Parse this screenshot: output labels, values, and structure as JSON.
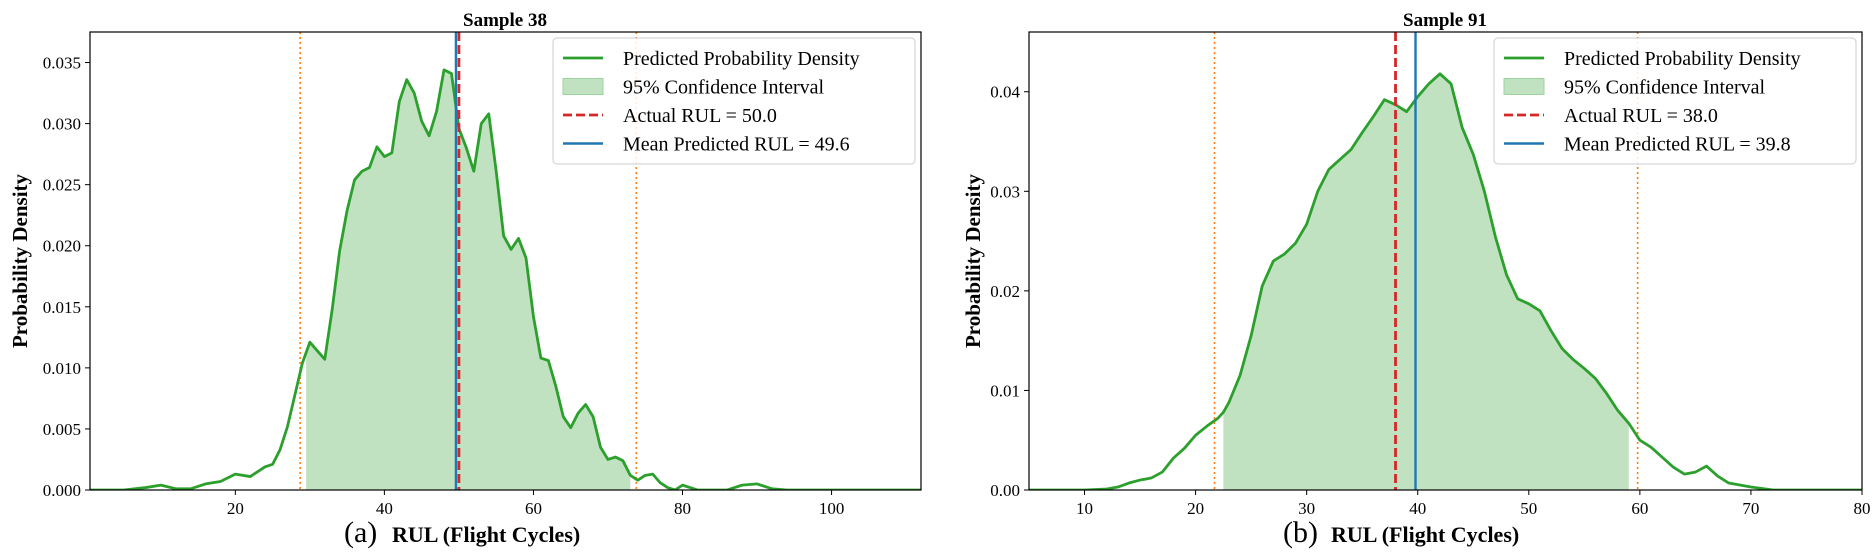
{
  "chart_data": [
    {
      "type": "line",
      "panel_label": "(a)",
      "title": "Sample 38",
      "xlabel": "RUL (Flight Cycles)",
      "ylabel": "Probability Density",
      "xlim": [
        0.5,
        112
      ],
      "ylim": [
        0,
        0.0375
      ],
      "xticks": [
        20,
        40,
        60,
        80,
        100
      ],
      "yticks": [
        0.0,
        0.005,
        0.01,
        0.015,
        0.02,
        0.025,
        0.03,
        0.035
      ],
      "ytick_decimals": 3,
      "ci": [
        29.5,
        73
      ],
      "actual_rul": 50.0,
      "mean_pred_rul": 49.6,
      "legend": [
        "Predicted Probability Density",
        "95% Confidence Interval",
        "Actual RUL = 50.0",
        "Mean Predicted RUL = 49.6"
      ],
      "legend_position": "top-right",
      "x": [
        0.5,
        5,
        8,
        10,
        12,
        14,
        16,
        18,
        20,
        22,
        24,
        25,
        26,
        27,
        28,
        29,
        30,
        31,
        32,
        33,
        34,
        35,
        36,
        37,
        38,
        39,
        40,
        41,
        42,
        43,
        44,
        45,
        46,
        47,
        48,
        49,
        50,
        51,
        52,
        53,
        54,
        55,
        56,
        57,
        58,
        59,
        60,
        61,
        62,
        63,
        64,
        65,
        66,
        67,
        68,
        69,
        70,
        71,
        72,
        73,
        74,
        75,
        76,
        77,
        78,
        79,
        80,
        82,
        84,
        86,
        88,
        90,
        92,
        94,
        96,
        98,
        100,
        102,
        104,
        106,
        112
      ],
      "y": [
        0,
        0,
        0.0002,
        0.0004,
        0.0001,
        0.0001,
        0.0005,
        0.0007,
        0.0013,
        0.0011,
        0.0019,
        0.0021,
        0.0033,
        0.0052,
        0.0078,
        0.0104,
        0.0121,
        0.0114,
        0.0107,
        0.0148,
        0.0196,
        0.0229,
        0.0254,
        0.0261,
        0.0264,
        0.0281,
        0.0273,
        0.0276,
        0.0318,
        0.0336,
        0.0325,
        0.0302,
        0.029,
        0.031,
        0.0344,
        0.0341,
        0.0296,
        0.028,
        0.0261,
        0.03,
        0.0308,
        0.0261,
        0.0208,
        0.0197,
        0.0206,
        0.019,
        0.0142,
        0.0108,
        0.0106,
        0.0085,
        0.006,
        0.0051,
        0.0063,
        0.007,
        0.006,
        0.0035,
        0.0025,
        0.0027,
        0.0024,
        0.0012,
        0.0008,
        0.0012,
        0.0013,
        0.0006,
        0.0002,
        0.0,
        0.0004,
        0.0,
        0.0,
        0.0,
        0.0004,
        0.0005,
        0.0001,
        0.0,
        0.0,
        0.0,
        0.0,
        0.0,
        0.0,
        0.0,
        0.0
      ]
    },
    {
      "type": "line",
      "panel_label": "(b)",
      "title": "Sample 91",
      "xlabel": "RUL (Flight Cycles)",
      "ylabel": "Probability Density",
      "xlim": [
        5,
        80
      ],
      "ylim": [
        0,
        0.046
      ],
      "xticks": [
        10,
        20,
        30,
        40,
        50,
        60,
        70,
        80
      ],
      "yticks": [
        0.0,
        0.01,
        0.02,
        0.03,
        0.04
      ],
      "ytick_decimals": 2,
      "ci": [
        22.5,
        59
      ],
      "actual_rul": 38.0,
      "mean_pred_rul": 39.8,
      "legend": [
        "Predicted Probability Density",
        "95% Confidence Interval",
        "Actual RUL = 38.0",
        "Mean Predicted RUL = 39.8"
      ],
      "legend_position": "top-right",
      "x": [
        5,
        8,
        10,
        12,
        13,
        14,
        15,
        16,
        17,
        18,
        19,
        20,
        21,
        22,
        22.5,
        23,
        24,
        25,
        26,
        27,
        28,
        29,
        30,
        31,
        32,
        33,
        34,
        35,
        36,
        37,
        38,
        39,
        40,
        41,
        42,
        43,
        44,
        45,
        46,
        47,
        48,
        49,
        50,
        51,
        52,
        53,
        54,
        55,
        56,
        57,
        58,
        59,
        60,
        61,
        62,
        63,
        64,
        65,
        66,
        67,
        68,
        69,
        70,
        72,
        75,
        80
      ],
      "y": [
        0,
        0,
        0,
        0.0001,
        0.0003,
        0.0007,
        0.001,
        0.0012,
        0.0018,
        0.0032,
        0.0042,
        0.0055,
        0.0064,
        0.0072,
        0.0078,
        0.0088,
        0.0115,
        0.0155,
        0.0205,
        0.023,
        0.0237,
        0.0248,
        0.0267,
        0.03,
        0.0322,
        0.0332,
        0.0342,
        0.0359,
        0.0375,
        0.0392,
        0.0387,
        0.038,
        0.0395,
        0.0408,
        0.0418,
        0.0408,
        0.0364,
        0.0337,
        0.03,
        0.0254,
        0.0216,
        0.0192,
        0.0187,
        0.018,
        0.016,
        0.0142,
        0.0131,
        0.0122,
        0.0112,
        0.0097,
        0.008,
        0.0067,
        0.005,
        0.0043,
        0.0033,
        0.0023,
        0.0016,
        0.0018,
        0.0024,
        0.0014,
        0.0007,
        0.0005,
        0.0003,
        0.0,
        0.0,
        0.0
      ]
    }
  ],
  "colors": {
    "density": "#2ca02c",
    "ci_fill": "#9fd29f",
    "actual": "#d62728",
    "mean": "#1f77b4",
    "ci_bound": "#ff7f0e"
  }
}
